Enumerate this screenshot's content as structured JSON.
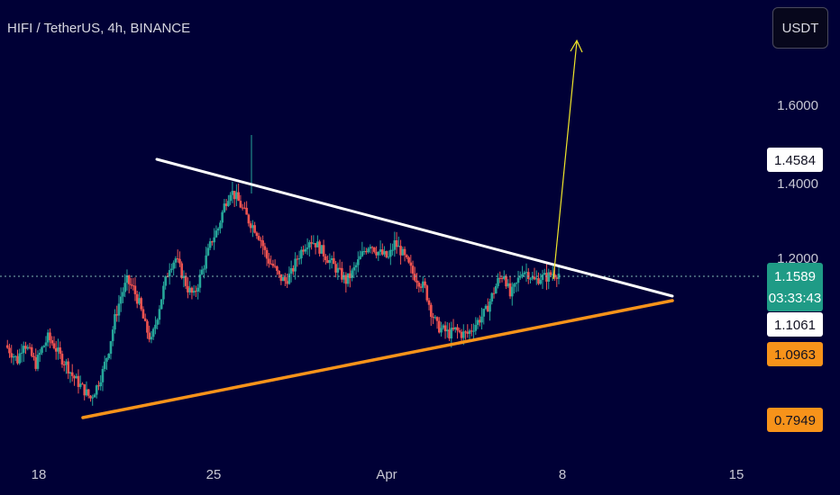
{
  "chart_data": {
    "type": "candlestick",
    "title": "HIFI / TetherUS, 4h, BINANCE",
    "x_ticks": [
      "18",
      "25",
      "Apr",
      "8",
      "15"
    ],
    "y_ticks": [
      "1.6000",
      "1.4000",
      "1.2000"
    ],
    "last_price": "1.1589",
    "countdown": "03:33:43",
    "price_tags": [
      {
        "label": "1.4584",
        "style": "white"
      },
      {
        "label": "1.1061",
        "style": "white"
      },
      {
        "label": "1.0963",
        "style": "orange"
      },
      {
        "label": "0.7949",
        "style": "orange"
      }
    ],
    "ohlc_path": [
      0.97,
      0.95,
      0.93,
      0.98,
      0.95,
      0.92,
      0.96,
      0.99,
      0.97,
      0.94,
      0.92,
      0.89,
      0.87,
      0.85,
      0.83,
      0.86,
      0.9,
      0.96,
      1.04,
      1.1,
      1.14,
      1.12,
      1.08,
      1.02,
      0.98,
      1.05,
      1.12,
      1.18,
      1.2,
      1.16,
      1.12,
      1.1,
      1.15,
      1.2,
      1.25,
      1.28,
      1.34,
      1.38,
      1.36,
      1.33,
      1.3,
      1.28,
      1.25,
      1.2,
      1.18,
      1.15,
      1.14,
      1.16,
      1.2,
      1.23,
      1.25,
      1.24,
      1.22,
      1.2,
      1.18,
      1.16,
      1.14,
      1.16,
      1.19,
      1.22,
      1.24,
      1.22,
      1.21,
      1.2,
      1.24,
      1.22,
      1.19,
      1.16,
      1.14,
      1.12,
      1.06,
      1.02,
      1.01,
      1.0,
      1.01,
      1.0,
      1.0,
      1.02,
      1.04,
      1.06,
      1.1,
      1.14,
      1.16,
      1.1,
      1.13,
      1.17,
      1.16,
      1.14,
      1.15,
      1.15,
      1.16,
      1.16
    ],
    "trendlines": [
      {
        "name": "resistance",
        "color": "#ffffff",
        "width": 3
      },
      {
        "name": "support",
        "color": "#f7931a",
        "width": 3.5
      }
    ],
    "projection_arrow": {
      "color": "#f0e62a"
    },
    "colors": {
      "up": "#26a69a",
      "down": "#ef5350",
      "background": "#000036",
      "text": "#d0d0dc"
    }
  },
  "toolbar": {
    "currency": "USDT"
  }
}
